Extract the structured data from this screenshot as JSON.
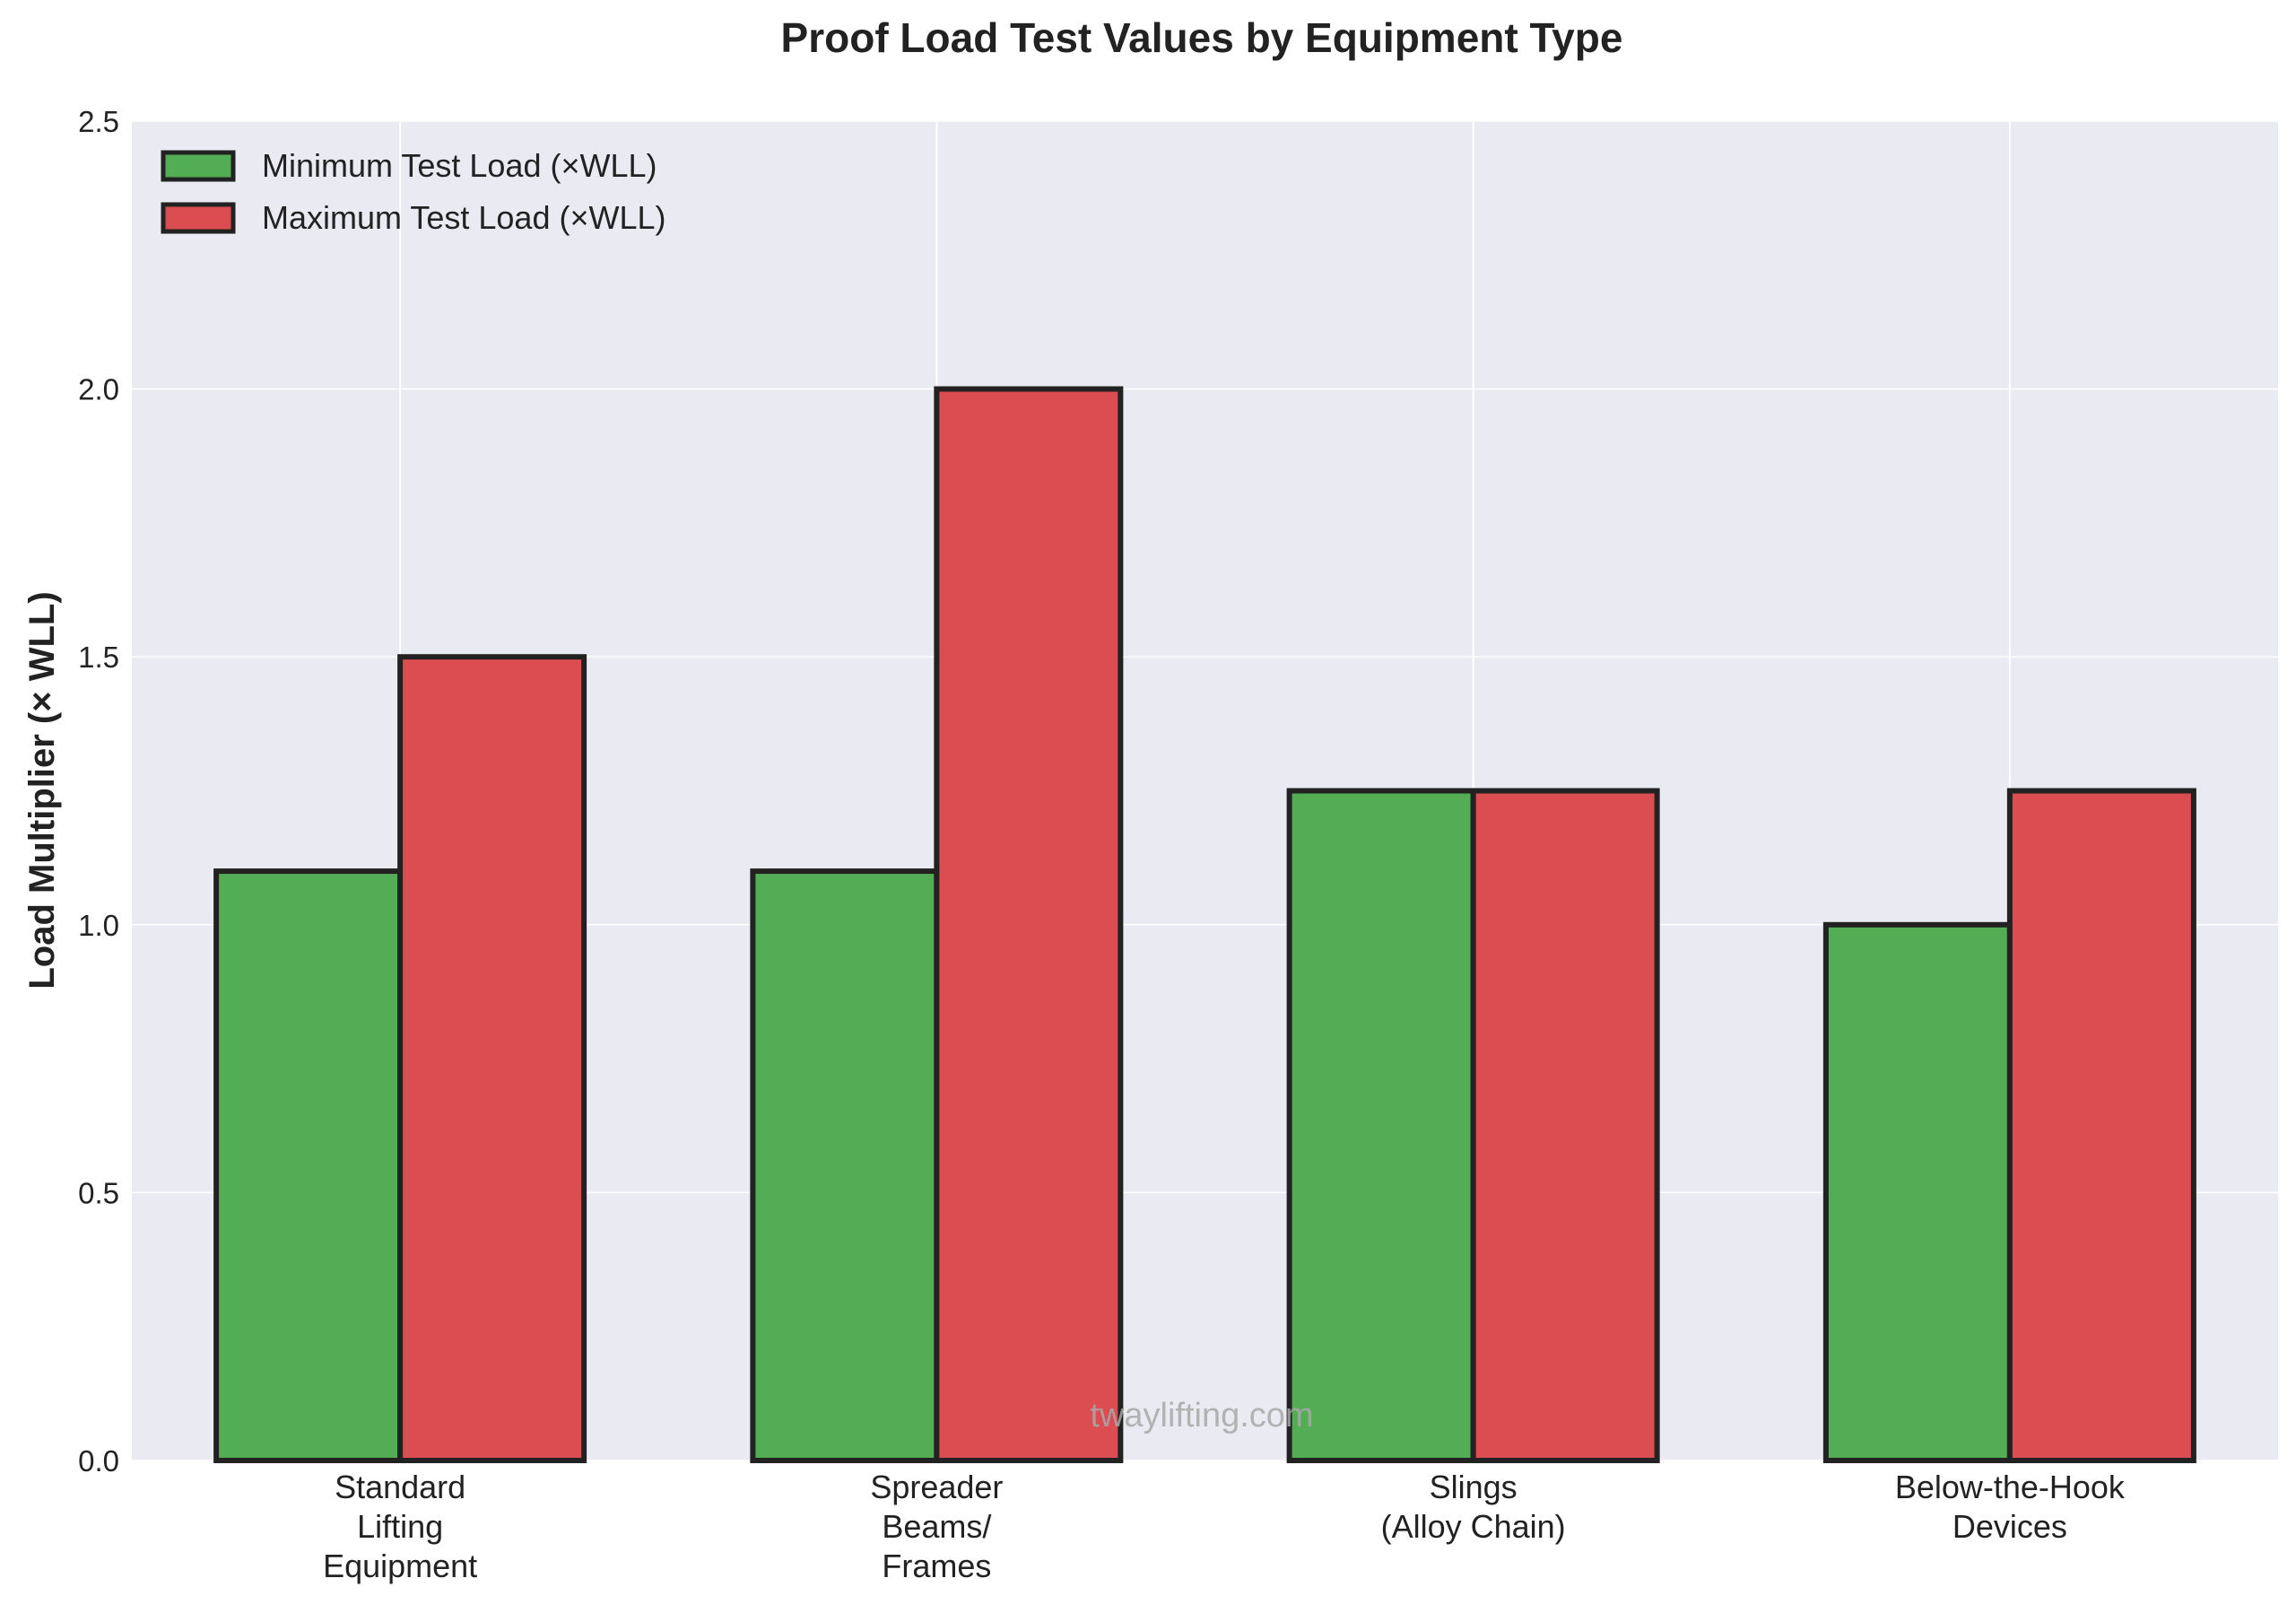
{
  "chart_data": {
    "type": "bar",
    "title": "Proof Load Test Values by Equipment Type",
    "xlabel": "",
    "ylabel": "Load Multiplier (× WLL)",
    "ylim": [
      0,
      2.5
    ],
    "yticks": [
      "0.0",
      "0.5",
      "1.0",
      "1.5",
      "2.0",
      "2.5"
    ],
    "ytick_values": [
      0,
      0.5,
      1.0,
      1.5,
      2.0,
      2.5
    ],
    "categories": [
      [
        "Standard",
        "Lifting",
        "Equipment"
      ],
      [
        "Spreader",
        "Beams/",
        "Frames"
      ],
      [
        "Slings",
        "(Alloy Chain)"
      ],
      [
        "Below-the-Hook",
        "Devices"
      ]
    ],
    "series": [
      {
        "name": "Minimum Test Load (×WLL)",
        "color": "#52ad54",
        "values": [
          1.1,
          1.1,
          1.25,
          1.0
        ]
      },
      {
        "name": "Maximum Test Load (×WLL)",
        "color": "#db4d51",
        "values": [
          1.5,
          2.0,
          1.25,
          1.25
        ]
      }
    ],
    "legend_position": "top-left",
    "grid": true,
    "watermark": "twaylifting.com"
  }
}
